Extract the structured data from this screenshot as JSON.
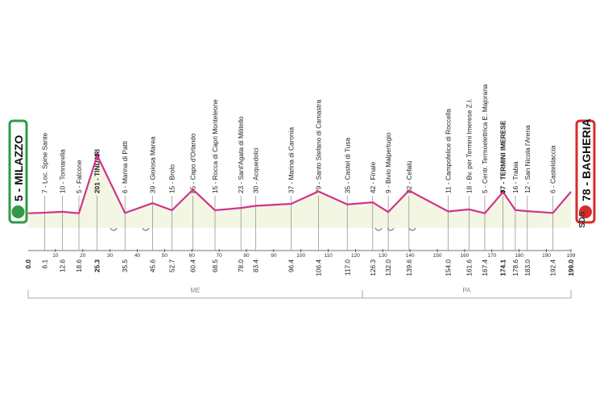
{
  "chart_data": {
    "type": "profile",
    "start": {
      "label": "5 - MILAZZO",
      "elevation": 5,
      "km": {
        "value": 0,
        "label": "0.0"
      }
    },
    "finish": {
      "label": "78 - BAGHERIA",
      "elevation": 78,
      "km": {
        "value": 199,
        "label": "199.0"
      }
    },
    "waypoints": [
      {
        "km": 6.1,
        "label": "7 - Loc. Spine Sante",
        "elevation": 7
      },
      {
        "km": 12.6,
        "label": "10 - Tonnarella",
        "elevation": 10
      },
      {
        "km": 18.6,
        "label": "5 - Falcone",
        "elevation": 5
      },
      {
        "km": 25.3,
        "label": "201 - TINDARI",
        "elevation": 201,
        "highlight": true
      },
      {
        "km": 35.5,
        "label": "6 - Marina di Patti",
        "elevation": 6
      },
      {
        "km": 45.6,
        "label": "39 - Gioiosa Marea",
        "elevation": 39
      },
      {
        "km": 52.7,
        "label": "15 - Brolo",
        "elevation": 15
      },
      {
        "km": 60.4,
        "label": "85 - Capo d'Orlando",
        "elevation": 85
      },
      {
        "km": 68.5,
        "label": "15 - Rocca di Capri Monteleone",
        "elevation": 15
      },
      {
        "km": {
          "value": 78,
          "label": "78.0"
        },
        "label": "23 - Sant'Agata di Militello",
        "elevation": 23
      },
      {
        "km": 83.4,
        "label": "30 - Acquedolci",
        "elevation": 30
      },
      {
        "km": 96.4,
        "label": "37 - Marina di Caronia",
        "elevation": 37
      },
      {
        "km": 106.4,
        "label": "79 - Santo Stefano di Camastra",
        "elevation": 79
      },
      {
        "km": {
          "value": 117,
          "label": "117.0"
        },
        "label": "35 - Castel di Tusa",
        "elevation": 35
      },
      {
        "km": 126.3,
        "label": "42 - Finale",
        "elevation": 42
      },
      {
        "km": {
          "value": 132,
          "label": "132.0"
        },
        "label": "9 - Bivio Malpertugio",
        "elevation": 9
      },
      {
        "km": 139.6,
        "label": "82 - Cefalù",
        "elevation": 82
      },
      {
        "km": {
          "value": 154,
          "label": "154.0"
        },
        "label": "11 - Campofelice di Roccella",
        "elevation": 11
      },
      {
        "km": 161.6,
        "label": "18 - Bv. per Termini Imerese Z.I.",
        "elevation": 18
      },
      {
        "km": 167.4,
        "label": "5 - Centr. Termoelettrica E. Majorana",
        "elevation": 5
      },
      {
        "km": 174.1,
        "label": "77 - TERMINI IMERESE",
        "elevation": 77,
        "highlight": true
      },
      {
        "km": 178.6,
        "label": "16 - Trabia",
        "elevation": 16
      },
      {
        "km": {
          "value": 183,
          "label": "183.0"
        },
        "label": "12 - San Nicola l'Arena",
        "elevation": 12
      },
      {
        "km": 192.4,
        "label": "6 - Casteldaccia",
        "elevation": 6
      }
    ],
    "xlim": [
      0,
      199
    ],
    "xticks": [
      10,
      20,
      30,
      40,
      50,
      60,
      70,
      80,
      90,
      100,
      110,
      120,
      130,
      140,
      150,
      160,
      170,
      180,
      190,
      199
    ],
    "ylim": [
      -45,
      250
    ],
    "color": "#d0348c",
    "regions": [
      {
        "label": "ME",
        "range": [
          0,
          122.5
        ]
      },
      {
        "label": "PA",
        "range": [
          122.5,
          199
        ]
      }
    ],
    "logo": "SDS"
  }
}
